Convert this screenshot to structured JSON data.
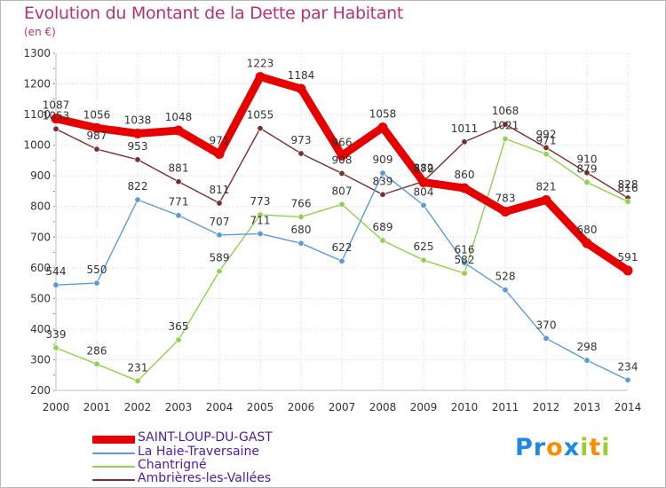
{
  "title": "Evolution du Montant de la Dette par Habitant",
  "unit": "(en €)",
  "chart_data": {
    "type": "line",
    "x": [
      2000,
      2001,
      2002,
      2003,
      2004,
      2005,
      2006,
      2007,
      2008,
      2009,
      2010,
      2011,
      2012,
      2013,
      2014
    ],
    "ylim": [
      200,
      1300
    ],
    "yticks": [
      200,
      300,
      400,
      500,
      600,
      700,
      800,
      900,
      1000,
      1100,
      1200,
      1300
    ],
    "grid": true,
    "legend_position": "bottom-left",
    "series": [
      {
        "name": "SAINT-LOUP-DU-GAST",
        "color": "#e60000",
        "values": [
          1087,
          1056,
          1038,
          1048,
          971,
          1223,
          1184,
          966,
          1058,
          879,
          860,
          783,
          821,
          680,
          591
        ]
      },
      {
        "name": "La Haie-Traversaine",
        "color": "#5b9bd5",
        "values": [
          544,
          550,
          822,
          771,
          707,
          711,
          680,
          622,
          909,
          804,
          616,
          528,
          370,
          298,
          234
        ]
      },
      {
        "name": "Chantrigné",
        "color": "#92d050",
        "values": [
          339,
          286,
          231,
          365,
          589,
          773,
          766,
          807,
          689,
          625,
          582,
          1021,
          971,
          879,
          816
        ]
      },
      {
        "name": "Ambrières-les-Vallées",
        "color": "#7b2e2e",
        "values": [
          1053,
          987,
          953,
          881,
          811,
          1055,
          973,
          908,
          839,
          882,
          1011,
          1068,
          992,
          910,
          828
        ]
      }
    ]
  },
  "logo": {
    "letters": [
      "P",
      "r",
      "o",
      "x",
      "i",
      "t",
      "i"
    ],
    "colors": [
      "#1e88e5",
      "#1e88e5",
      "#fb8c00",
      "#1e88e5",
      "#9acd32",
      "#fb8c00",
      "#9acd32"
    ]
  }
}
